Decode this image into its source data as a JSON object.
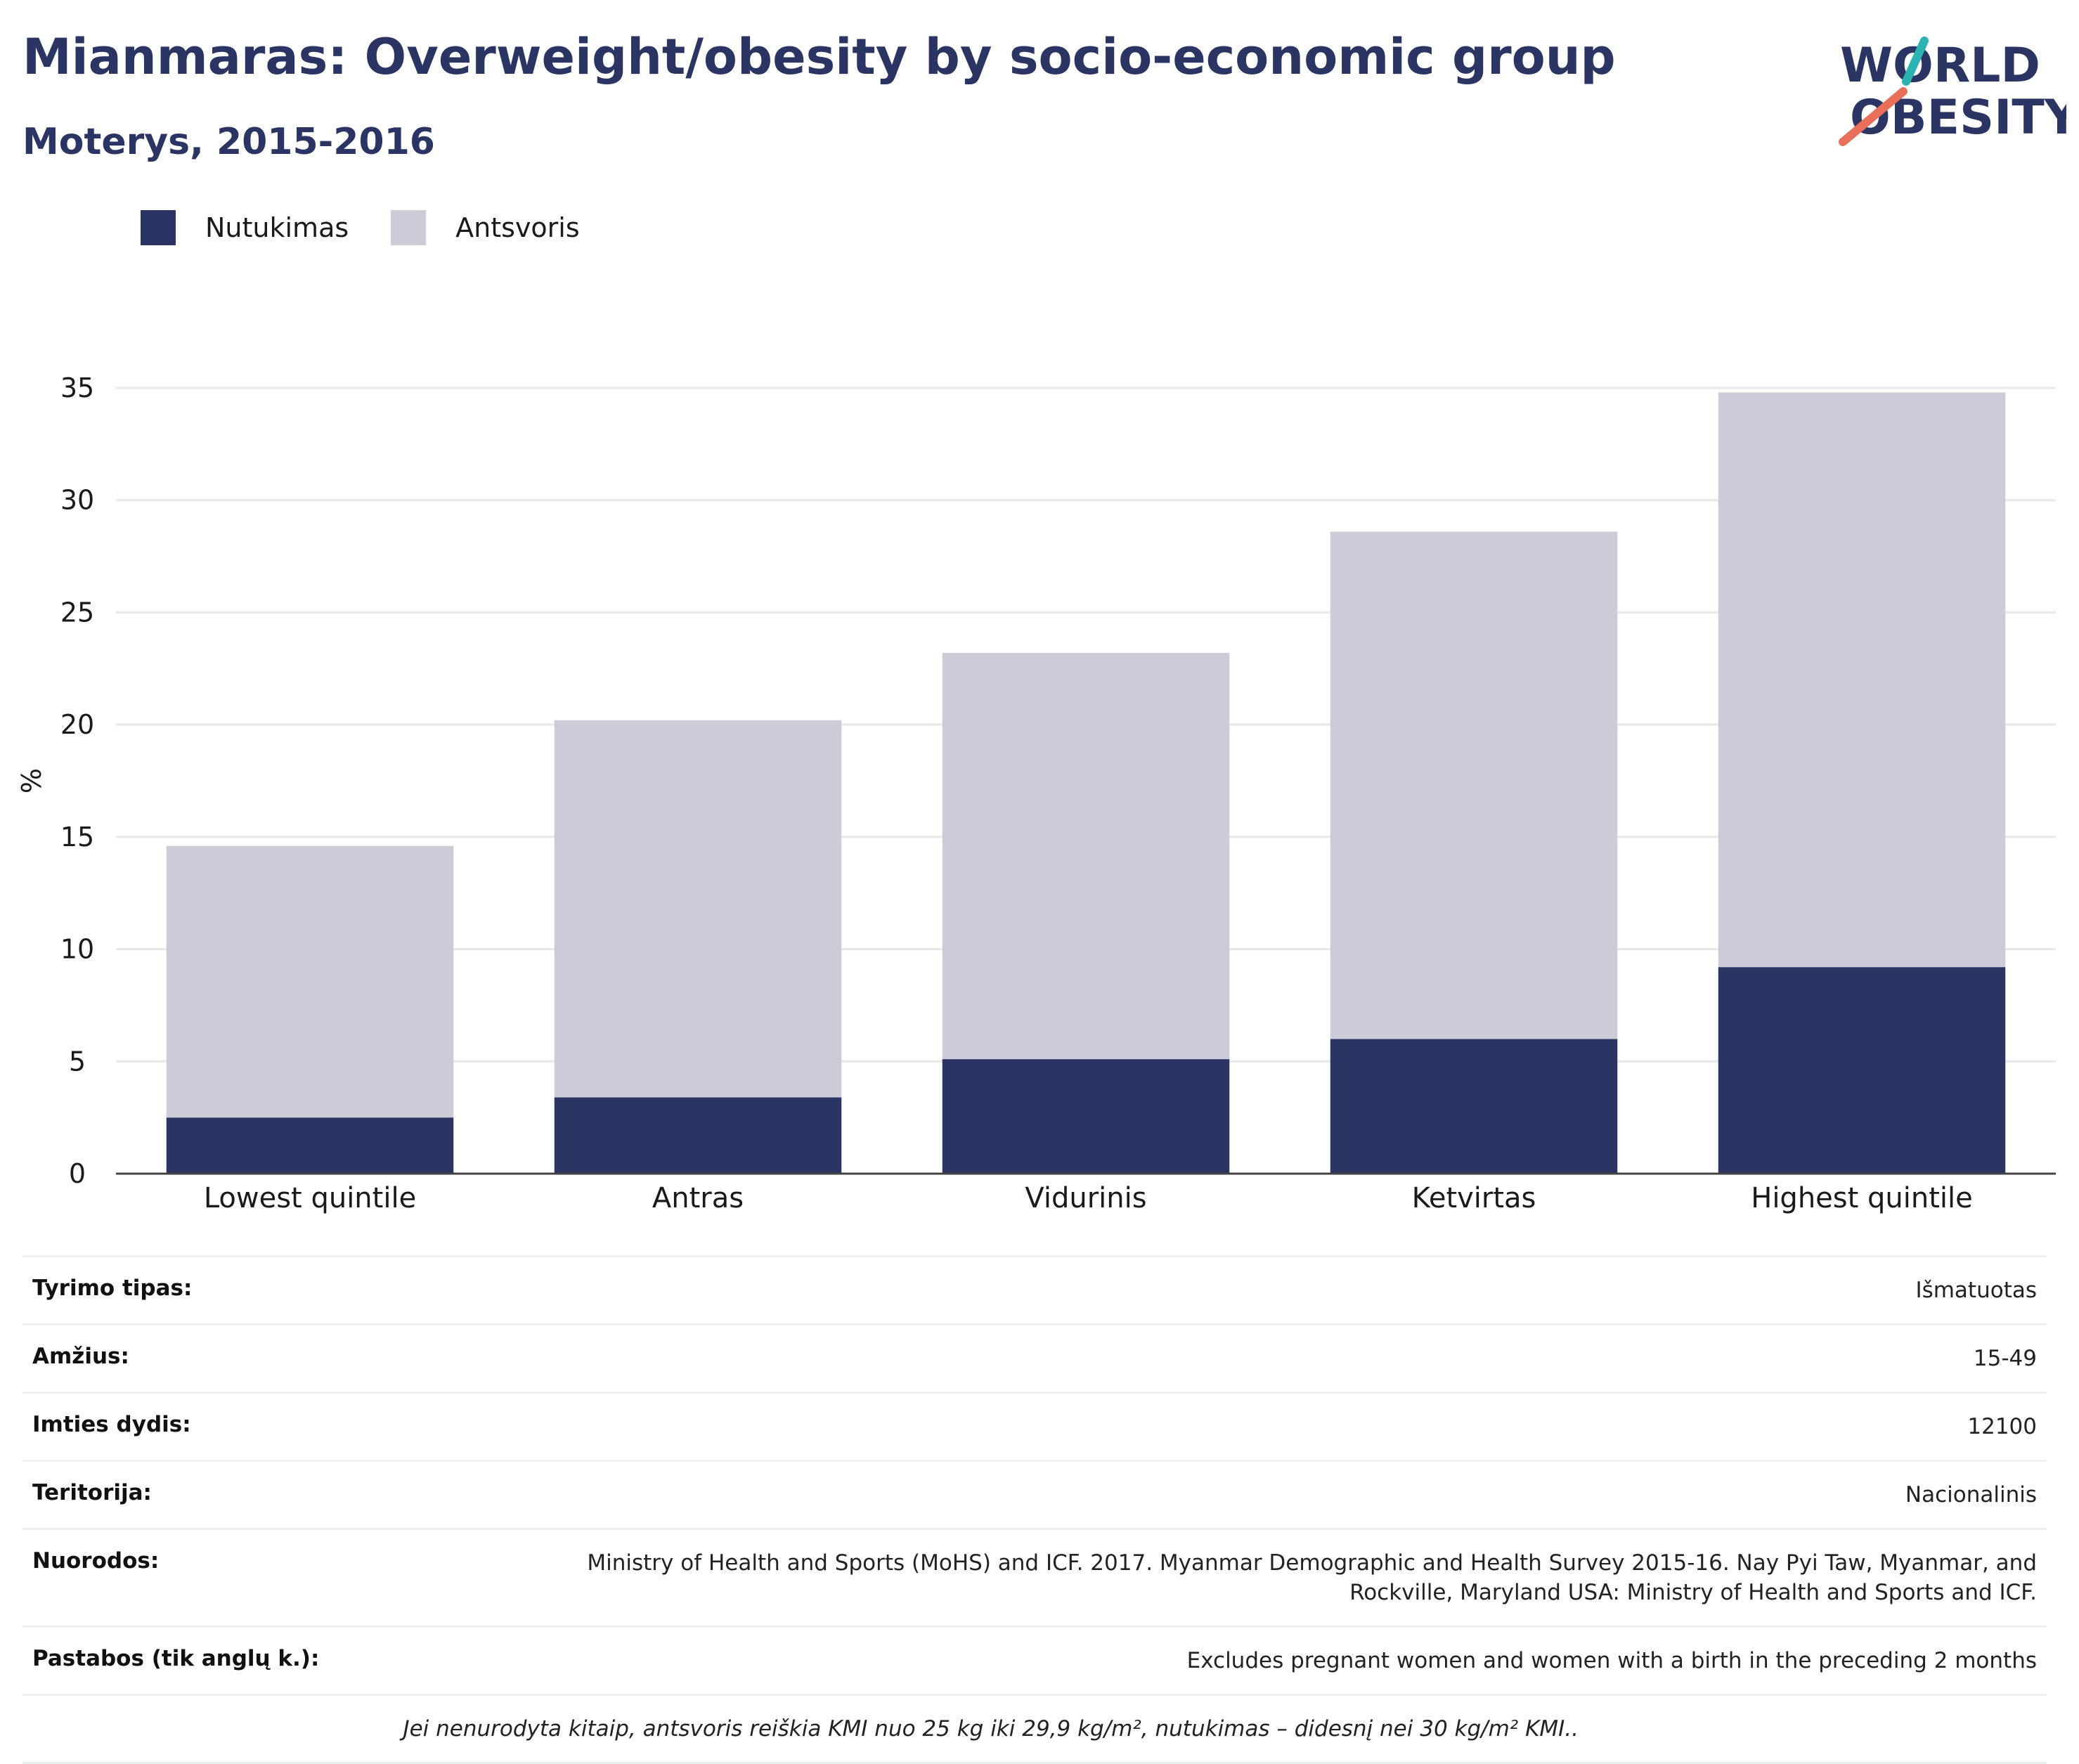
{
  "header": {
    "title": "Mianmaras: Overweight/obesity by socio-economic group",
    "subtitle": "Moterys, 2015-2016"
  },
  "logo": {
    "line1": "WORLD",
    "line2": "OBESITY"
  },
  "colors": {
    "obesity": "#2a3563",
    "overweight": "#cbccd8",
    "title": "#2a3563",
    "grid": "#e8e8e8"
  },
  "chart_data": {
    "type": "bar",
    "stacked": true,
    "categories": [
      "Lowest quintile",
      "Antras",
      "Vidurinis",
      "Ketvirtas",
      "Highest quintile"
    ],
    "series": [
      {
        "name": "Nutukimas",
        "values": [
          2.5,
          3.4,
          5.1,
          6.0,
          9.2
        ]
      },
      {
        "name": "Antsvoris",
        "values": [
          12.1,
          16.8,
          18.1,
          22.6,
          25.6
        ]
      }
    ],
    "ylabel": "%",
    "ylim": [
      0,
      35
    ],
    "yticks": [
      0,
      5,
      10,
      15,
      20,
      25,
      30,
      35
    ],
    "grid": true,
    "legend": "top-left"
  },
  "info": [
    {
      "key": "Tyrimo tipas:",
      "value": "Išmatuotas"
    },
    {
      "key": "Amžius:",
      "value": "15-49"
    },
    {
      "key": "Imties dydis:",
      "value": "12100"
    },
    {
      "key": "Teritorija:",
      "value": "Nacionalinis"
    },
    {
      "key": "Nuorodos:",
      "value": "Ministry of Health and Sports (MoHS) and ICF. 2017. Myanmar Demographic and Health Survey 2015-16. Nay Pyi Taw, Myanmar, and Rockville, Maryland USA: Ministry of Health and Sports and ICF."
    },
    {
      "key": "Pastabos (tik anglų k.):",
      "value": "Excludes pregnant women and women with a birth in the preceding 2 months"
    }
  ],
  "footnote": "Jei nenurodyta kitaip, antsvoris reiškia KMI nuo 25 kg iki 29,9 kg/m², nutukimas – didesnį nei 30 kg/m² KMI.."
}
